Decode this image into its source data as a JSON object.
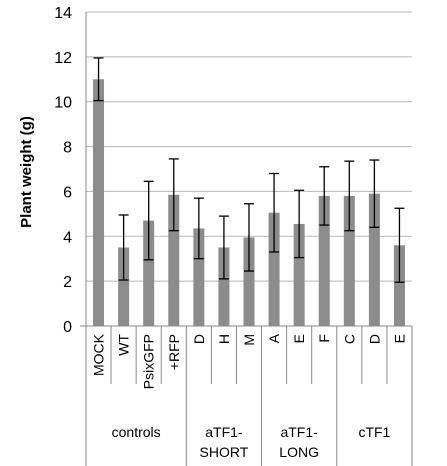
{
  "chart_data": {
    "type": "bar",
    "title": "",
    "xlabel": "",
    "ylabel": "Plant weight (g)",
    "ylim": [
      0,
      14
    ],
    "yticks": [
      0,
      2,
      4,
      6,
      8,
      10,
      12,
      14
    ],
    "grid": true,
    "legend": "none",
    "bar_color": "#8c8c8c",
    "categories": [
      "MOCK",
      "WT",
      "PsixGFP",
      "+RFP",
      "D",
      "H",
      "M",
      "A",
      "E",
      "F",
      "C",
      "D",
      "E"
    ],
    "values": [
      11.0,
      3.5,
      4.7,
      5.85,
      4.35,
      3.5,
      3.95,
      5.05,
      4.55,
      5.8,
      5.8,
      5.9,
      3.6
    ],
    "errors": [
      0.95,
      1.45,
      1.75,
      1.6,
      1.35,
      1.4,
      1.5,
      1.75,
      1.5,
      1.3,
      1.55,
      1.5,
      1.65
    ],
    "groups": [
      {
        "label": "controls",
        "count": 4
      },
      {
        "label": "aTF1-\nSHORT",
        "count": 3
      },
      {
        "label": "aTF1-\nLONG",
        "count": 3
      },
      {
        "label": "cTF1",
        "count": 3
      }
    ]
  }
}
